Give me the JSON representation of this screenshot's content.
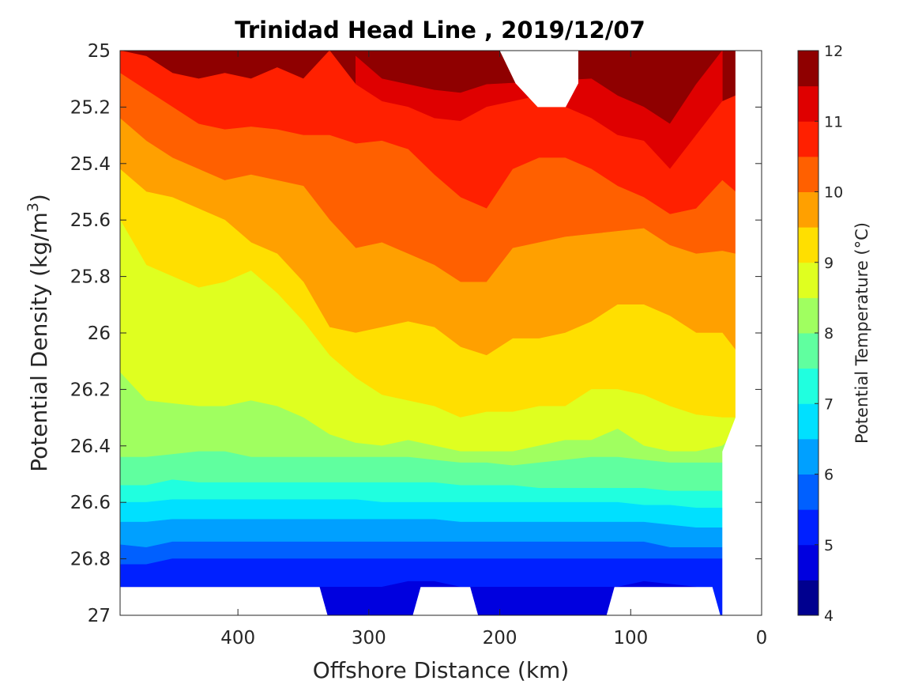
{
  "chart_data": {
    "type": "contour",
    "title": "Trinidad Head Line , 2019/12/07",
    "xlabel": "Offshore Distance (km)",
    "ylabel_main": "Potential Density (kg/m",
    "ylabel_sup": "3",
    "ylabel_close": ")",
    "colorbar_label": "Potential Temperature (°C)",
    "x_reversed": true,
    "xlim": [
      0,
      490
    ],
    "ylim": [
      25,
      27
    ],
    "y_reversed": true,
    "x_ticks": [
      "0",
      "100",
      "200",
      "300",
      "400"
    ],
    "x_tick_values": [
      0,
      100,
      200,
      300,
      400
    ],
    "y_ticks": [
      "25",
      "25.2",
      "25.4",
      "25.6",
      "25.8",
      "26",
      "26.2",
      "26.4",
      "26.6",
      "26.8",
      "27"
    ],
    "y_tick_values": [
      25,
      25.2,
      25.4,
      25.6,
      25.8,
      26,
      26.2,
      26.4,
      26.6,
      26.8,
      27
    ],
    "colorbar_ticks": [
      "4",
      "5",
      "6",
      "7",
      "8",
      "9",
      "10",
      "11",
      "12"
    ],
    "colorbar_range": [
      4,
      12
    ],
    "levels": [
      4,
      4.5,
      5,
      5.5,
      6,
      6.5,
      7,
      7.5,
      8,
      8.5,
      9,
      9.5,
      10,
      10.5,
      11,
      11.5,
      12
    ],
    "colormap": [
      "#00008f",
      "#0000df",
      "#0020ff",
      "#0060ff",
      "#00a0ff",
      "#00e0ff",
      "#20ffdf",
      "#60ff9f",
      "#a0ff60",
      "#dfff20",
      "#ffdf00",
      "#ffa000",
      "#ff6000",
      "#ff2000",
      "#df0000",
      "#8f0000"
    ],
    "distances": [
      490,
      470,
      450,
      430,
      410,
      390,
      370,
      350,
      330,
      310,
      290,
      270,
      250,
      230,
      210,
      190,
      170,
      150,
      130,
      110,
      90,
      70,
      50,
      30,
      20
    ],
    "isopycnals_of_isotherms": [
      {
        "level": 11.5,
        "density": [
          null,
          null,
          null,
          null,
          null,
          null,
          null,
          null,
          null,
          25.02,
          25.1,
          25.12,
          25.14,
          25.15,
          25.12,
          null,
          null,
          null,
          25.1,
          25.16,
          25.2,
          25.26,
          25.12,
          25.0,
          null
        ]
      },
      {
        "level": 11.0,
        "density": [
          25.0,
          25.02,
          25.08,
          25.1,
          25.08,
          25.1,
          25.06,
          25.1,
          25.0,
          25.12,
          25.18,
          25.2,
          25.24,
          25.25,
          25.2,
          25.18,
          25.16,
          25.2,
          25.24,
          25.3,
          25.32,
          25.42,
          25.3,
          25.18,
          25.16
        ]
      },
      {
        "level": 10.5,
        "density": [
          25.08,
          25.14,
          25.2,
          25.26,
          25.28,
          25.27,
          25.28,
          25.3,
          25.3,
          25.33,
          25.32,
          25.35,
          25.44,
          25.52,
          25.56,
          25.42,
          25.38,
          25.38,
          25.42,
          25.48,
          25.52,
          25.58,
          25.56,
          25.46,
          25.5
        ]
      },
      {
        "level": 10.0,
        "density": [
          25.24,
          25.32,
          25.38,
          25.42,
          25.46,
          25.44,
          25.46,
          25.48,
          25.6,
          25.7,
          25.68,
          25.72,
          25.76,
          25.82,
          25.82,
          25.7,
          25.68,
          25.66,
          25.65,
          25.64,
          25.63,
          25.69,
          25.72,
          25.71,
          25.72
        ]
      },
      {
        "level": 9.5,
        "density": [
          25.42,
          25.5,
          25.52,
          25.56,
          25.6,
          25.68,
          25.72,
          25.82,
          25.98,
          26.0,
          25.98,
          25.96,
          25.98,
          26.05,
          26.08,
          26.02,
          26.02,
          26.0,
          25.96,
          25.9,
          25.9,
          25.94,
          26.0,
          26.0,
          26.06
        ]
      },
      {
        "level": 9.0,
        "density": [
          25.6,
          25.76,
          25.8,
          25.84,
          25.82,
          25.78,
          25.86,
          25.96,
          26.08,
          26.16,
          26.22,
          26.24,
          26.26,
          26.3,
          26.28,
          26.28,
          26.26,
          26.26,
          26.2,
          26.2,
          26.22,
          26.26,
          26.29,
          26.3,
          26.3
        ]
      },
      {
        "level": 8.5,
        "density": [
          26.14,
          26.24,
          26.25,
          26.26,
          26.26,
          26.24,
          26.26,
          26.3,
          26.36,
          26.39,
          26.4,
          26.38,
          26.4,
          26.42,
          26.42,
          26.42,
          26.4,
          26.38,
          26.38,
          26.34,
          26.4,
          26.42,
          26.42,
          26.4,
          26.36
        ]
      },
      {
        "level": 8.0,
        "density": [
          26.44,
          26.44,
          26.43,
          26.42,
          26.42,
          26.44,
          26.44,
          26.44,
          26.44,
          26.44,
          26.44,
          26.44,
          26.45,
          26.46,
          26.46,
          26.47,
          26.46,
          26.45,
          26.44,
          26.44,
          26.45,
          26.46,
          26.46,
          26.46,
          null
        ]
      },
      {
        "level": 7.5,
        "density": [
          26.54,
          26.54,
          26.52,
          26.53,
          26.53,
          26.53,
          26.53,
          26.53,
          26.53,
          26.53,
          26.53,
          26.53,
          26.53,
          26.54,
          26.54,
          26.54,
          26.55,
          26.55,
          26.55,
          26.55,
          26.55,
          26.56,
          26.56,
          26.56,
          null
        ]
      },
      {
        "level": 7.0,
        "density": [
          26.6,
          26.6,
          26.59,
          26.59,
          26.59,
          26.59,
          26.59,
          26.59,
          26.59,
          26.59,
          26.6,
          26.6,
          26.6,
          26.6,
          26.6,
          26.6,
          26.6,
          26.6,
          26.6,
          26.6,
          26.61,
          26.61,
          26.62,
          26.62,
          null
        ]
      },
      {
        "level": 6.5,
        "density": [
          26.67,
          26.67,
          26.66,
          26.66,
          26.66,
          26.66,
          26.66,
          26.66,
          26.66,
          26.66,
          26.66,
          26.66,
          26.66,
          26.67,
          26.67,
          26.67,
          26.67,
          26.67,
          26.67,
          26.67,
          26.67,
          26.68,
          26.69,
          26.69,
          null
        ]
      },
      {
        "level": 6.0,
        "density": [
          26.75,
          26.76,
          26.74,
          26.74,
          26.74,
          26.74,
          26.74,
          26.74,
          26.74,
          26.74,
          26.74,
          26.74,
          26.74,
          26.74,
          26.74,
          26.74,
          26.74,
          26.74,
          26.74,
          26.74,
          26.74,
          26.76,
          26.76,
          26.76,
          null
        ]
      },
      {
        "level": 5.5,
        "density": [
          26.82,
          26.82,
          26.8,
          26.8,
          26.8,
          26.8,
          26.8,
          26.8,
          26.8,
          26.8,
          26.8,
          26.8,
          26.8,
          26.8,
          26.8,
          26.8,
          26.8,
          26.8,
          26.8,
          26.8,
          26.8,
          26.8,
          26.8,
          26.8,
          null
        ]
      },
      {
        "level": 5.0,
        "density": [
          26.9,
          26.9,
          26.9,
          26.9,
          26.9,
          26.9,
          26.9,
          26.9,
          26.9,
          26.9,
          26.9,
          26.88,
          26.88,
          26.9,
          26.9,
          26.9,
          26.9,
          26.9,
          26.9,
          26.9,
          26.88,
          26.89,
          26.9,
          null,
          null
        ]
      }
    ],
    "data_extent": {
      "offshore_edge_km": 490,
      "inshore_edge_top_km": 20,
      "inshore_edge_deep_km": 30,
      "max_density_sampled": [
        {
          "x_km": [
            490,
            340
          ],
          "density": 26.9
        },
        {
          "x_km": [
            335,
            262
          ],
          "density": 27.0
        },
        {
          "x_km": [
            258,
            225
          ],
          "density": 26.9
        },
        {
          "x_km": [
            220,
            118
          ],
          "density": 27.0
        },
        {
          "x_km": [
            110,
            40
          ],
          "density": 26.9
        }
      ],
      "gaps_near_surface": [
        {
          "x_km": [
            200,
            140
          ],
          "density_max": 25.2
        }
      ]
    }
  }
}
